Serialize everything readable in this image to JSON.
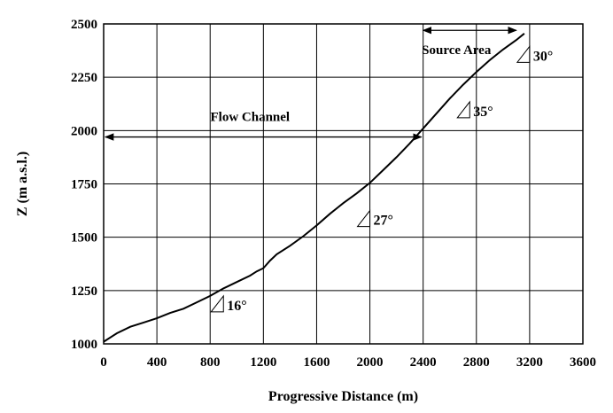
{
  "chart_data": {
    "type": "line",
    "title": "",
    "xlabel": "Progressive Distance  (m)",
    "ylabel": "Z  (m  a.s.l.)",
    "xlim": [
      0,
      3600
    ],
    "ylim": [
      1000,
      2500
    ],
    "x_ticks": [
      "0",
      "400",
      "800",
      "1200",
      "1600",
      "2000",
      "2400",
      "2800",
      "3200",
      "3600"
    ],
    "y_ticks": [
      "1000",
      "1250",
      "1500",
      "1750",
      "2000",
      "2250",
      "2500"
    ],
    "grid": true,
    "series": [
      {
        "x": [
          0,
          100,
          200,
          300,
          400,
          500,
          600,
          700,
          800,
          900,
          1000,
          1100,
          1150,
          1200,
          1250,
          1300,
          1400,
          1500,
          1600,
          1700,
          1800,
          1900,
          2000,
          2100,
          2200,
          2300,
          2400,
          2500,
          2600,
          2700,
          2800,
          2900,
          3000,
          3100,
          3160
        ],
        "y": [
          1010,
          1050,
          1080,
          1100,
          1120,
          1145,
          1165,
          1195,
          1225,
          1260,
          1290,
          1320,
          1340,
          1355,
          1390,
          1420,
          1460,
          1505,
          1555,
          1610,
          1660,
          1705,
          1755,
          1815,
          1875,
          1940,
          2010,
          2080,
          2150,
          2215,
          2275,
          2330,
          2380,
          2425,
          2455
        ]
      }
    ],
    "annotations": {
      "flow_channel": {
        "label": "Flow Channel",
        "x_from": 0,
        "x_to": 2400,
        "y": 1970
      },
      "source_area": {
        "label": "Source Area",
        "x_from": 2400,
        "x_to": 3100,
        "y": 2470
      },
      "slopes": [
        {
          "label": "16°",
          "x": 900,
          "y": 1150
        },
        {
          "label": "27°",
          "x": 2000,
          "y": 1550
        },
        {
          "label": "35°",
          "x": 2750,
          "y": 2060
        },
        {
          "label": "30°",
          "x": 3200,
          "y": 2320
        }
      ]
    }
  }
}
